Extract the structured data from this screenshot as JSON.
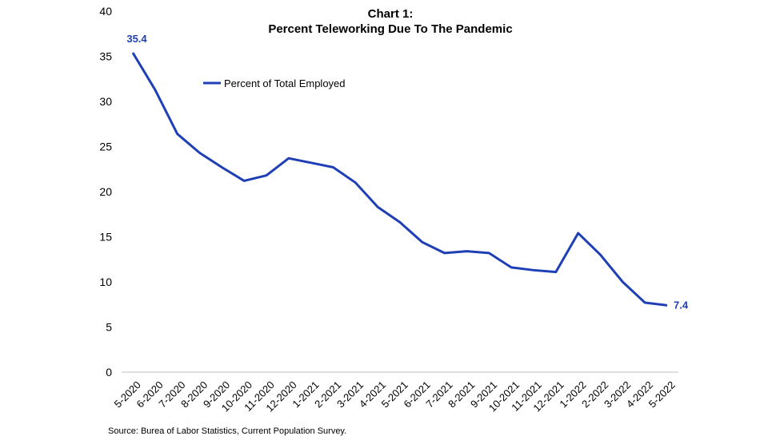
{
  "chart_data": {
    "type": "line",
    "title_line1": "Chart 1:",
    "title_line2": "Percent Teleworking Due To The Pandemic",
    "categories": [
      "5-2020",
      "6-2020",
      "7-2020",
      "8-2020",
      "9-2020",
      "10-2020",
      "11-2020",
      "12-2020",
      "1-2021",
      "2-2021",
      "3-2021",
      "4-2021",
      "5-2021",
      "6-2021",
      "7-2021",
      "8-2021",
      "9-2021",
      "10-2021",
      "11-2021",
      "12-2021",
      "1-2022",
      "2-2022",
      "3-2022",
      "4-2022",
      "5-2022"
    ],
    "series": [
      {
        "name": "Percent of Total Employed",
        "color": "#1f3fb5",
        "values": [
          35.4,
          31.3,
          26.4,
          24.3,
          22.7,
          21.2,
          21.8,
          23.7,
          23.2,
          22.7,
          21.0,
          18.3,
          16.6,
          14.4,
          13.2,
          13.4,
          13.2,
          11.6,
          11.3,
          11.1,
          15.4,
          13.0,
          10.0,
          7.7,
          7.4
        ]
      }
    ],
    "data_labels": [
      {
        "index": 0,
        "text": "35.4"
      },
      {
        "index": 24,
        "text": "7.4"
      }
    ],
    "ylim": [
      0,
      40
    ],
    "yticks": [
      "0",
      "5",
      "10",
      "15",
      "20",
      "25",
      "30",
      "35",
      "40"
    ],
    "grid": false,
    "legend_placement": "top-left"
  },
  "source": "Source: Burea of Labor Statistics, Current Population Survey."
}
